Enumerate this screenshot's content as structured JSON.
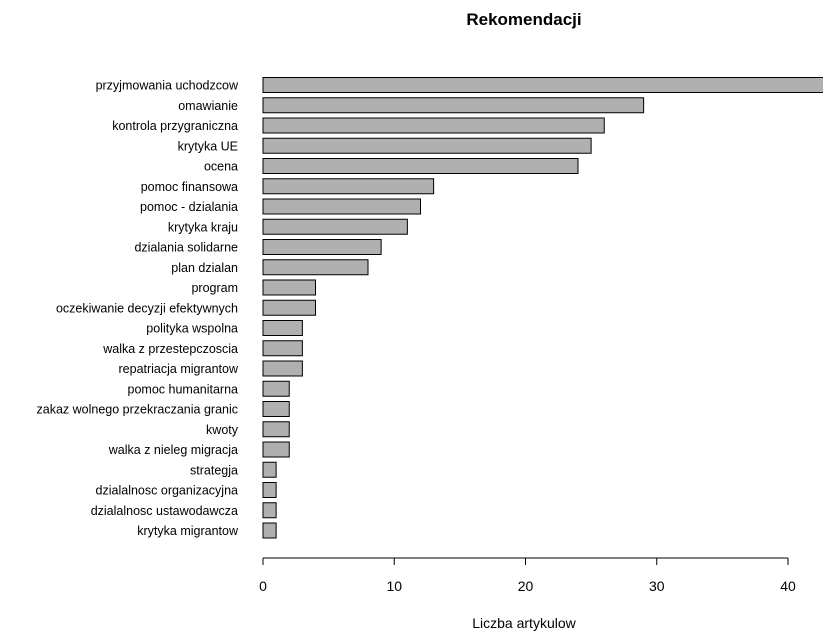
{
  "chart_data": {
    "type": "bar",
    "orientation": "horizontal",
    "title": "Rekomendacji",
    "xlabel": "Liczba artykulow",
    "ylabel": "",
    "xlim": [
      0,
      42
    ],
    "xticks": [
      0,
      10,
      20,
      30,
      40
    ],
    "grid": false,
    "legend": "none",
    "bar_color": "#b0b0b0",
    "bar_edge_color": "#000000",
    "categories": [
      "przyjmowania uchodzcow",
      "omawianie",
      "kontrola przygraniczna",
      "krytyka UE",
      "ocena",
      "pomoc finansowa",
      "pomoc - dzialania",
      "krytyka kraju",
      "dzialania solidarne",
      "plan dzialan",
      "program",
      "oczekiwanie decyzji efektywnych",
      "polityka wspolna",
      "walka z przestepczoscia",
      "repatriacja migrantow",
      "pomoc humanitarna",
      "zakaz wolnego przekraczania granic",
      "kwoty",
      "walka z nieleg migracja",
      "strategja",
      "dzialalnosc organizacyjna",
      "dzialalnosc ustawodawcza",
      "krytyka migrantow"
    ],
    "values": [
      43,
      29,
      26,
      25,
      24,
      13,
      12,
      11,
      9,
      8,
      4,
      4,
      3,
      3,
      3,
      2,
      2,
      2,
      2,
      1,
      1,
      1,
      1
    ]
  }
}
